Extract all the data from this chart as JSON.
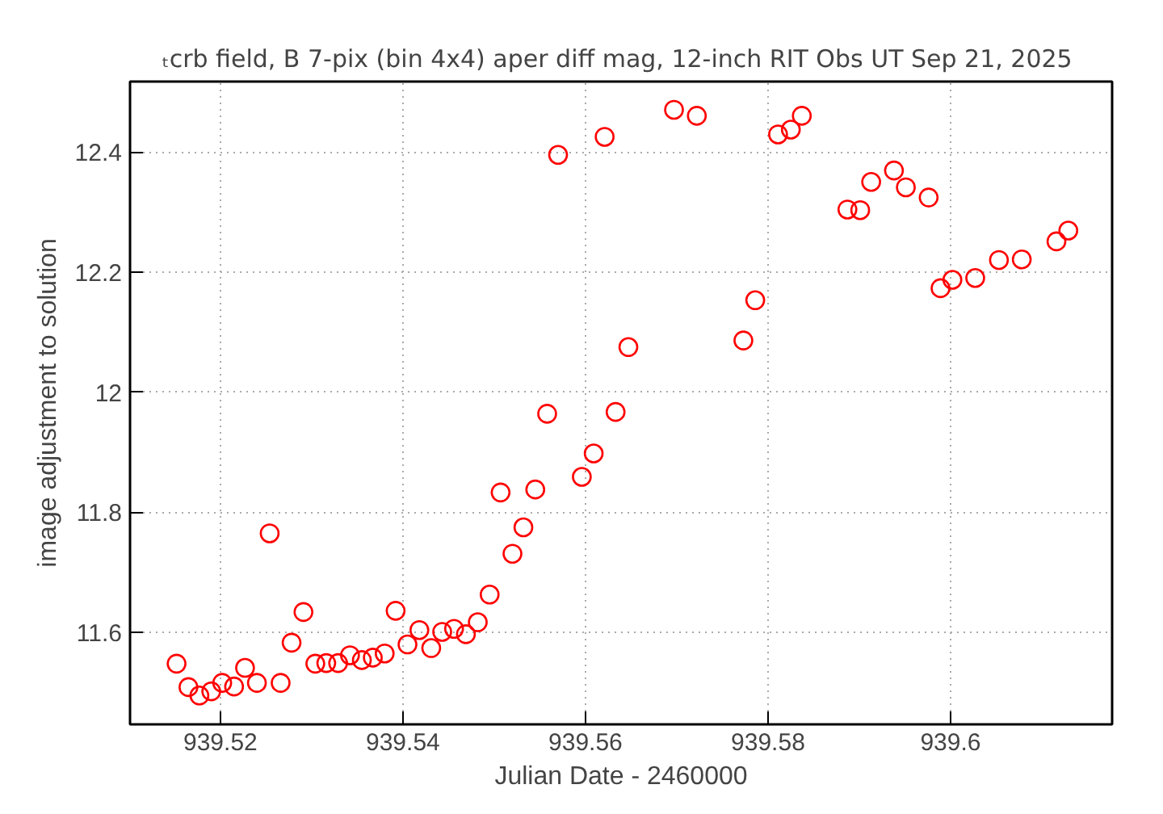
{
  "chart_data": {
    "type": "scatter",
    "title": "ₜcrb field, B 7-pix (bin 4x4) aper diff mag,  12-inch RIT Obs UT Sep 21, 2025",
    "xlabel": "Julian Date - 2460000",
    "ylabel": "image adjustment to solution",
    "x": [
      939.5152,
      939.5165,
      939.5177,
      939.519,
      939.5202,
      939.5215,
      939.5227,
      939.524,
      939.5254,
      939.5266,
      939.5278,
      939.5291,
      939.5304,
      939.5316,
      939.5329,
      939.5342,
      939.5355,
      939.5367,
      939.538,
      939.5392,
      939.5405,
      939.5418,
      939.5431,
      939.5443,
      939.5456,
      939.5469,
      939.5482,
      939.5495,
      939.5507,
      939.552,
      939.5532,
      939.5545,
      939.5558,
      939.557,
      939.5596,
      939.5609,
      939.5621,
      939.5633,
      939.5647,
      939.5697,
      939.5722,
      939.5773,
      939.5786,
      939.5811,
      939.5825,
      939.5837,
      939.5887,
      939.5901,
      939.5913,
      939.5938,
      939.5951,
      939.5976,
      939.5989,
      939.6002,
      939.6027,
      939.6053,
      939.6078,
      939.6116,
      939.6129
    ],
    "series": [
      {
        "color": "#ff0000",
        "values": [
          11.548,
          11.509,
          11.495,
          11.502,
          11.516,
          11.51,
          11.541,
          11.516,
          11.765,
          11.516,
          11.583,
          11.634,
          11.548,
          11.549,
          11.549,
          11.562,
          11.554,
          11.558,
          11.565,
          11.636,
          11.58,
          11.604,
          11.574,
          11.601,
          11.606,
          11.597,
          11.617,
          11.663,
          11.833,
          11.731,
          11.775,
          11.838,
          11.964,
          12.395,
          11.859,
          11.898,
          12.425,
          11.967,
          12.075,
          12.47,
          12.46,
          12.086,
          12.153,
          12.429,
          12.437,
          12.46,
          12.304,
          12.303,
          12.35,
          12.369,
          12.341,
          12.324,
          12.173,
          12.187,
          12.19,
          12.22,
          12.221,
          12.251,
          12.269
        ]
      }
    ],
    "xlim": [
      939.5101,
      939.6177
    ],
    "ylim": [
      11.447,
      12.517
    ],
    "xticks": [
      {
        "value": 939.52,
        "label": "939.52"
      },
      {
        "value": 939.54,
        "label": "939.54"
      },
      {
        "value": 939.56,
        "label": "939.56"
      },
      {
        "value": 939.58,
        "label": "939.58"
      },
      {
        "value": 939.6,
        "label": "939.6"
      }
    ],
    "yticks": [
      {
        "value": 11.6,
        "label": "11.6"
      },
      {
        "value": 11.8,
        "label": "11.8"
      },
      {
        "value": 12,
        "label": "12"
      },
      {
        "value": 12.2,
        "label": "12.2"
      },
      {
        "value": 12.4,
        "label": "12.4"
      }
    ],
    "grid": true,
    "marker": "circle"
  }
}
